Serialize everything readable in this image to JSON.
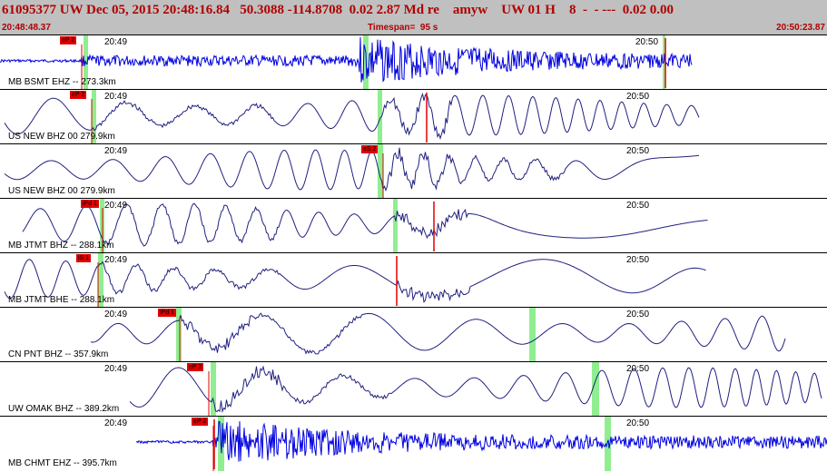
{
  "header": {
    "title": "61095377 UW Dec 05, 2015 20:48:16.84   50.3088 -114.8708  0.02 2.87 Md re    amyw    UW 01 H    8  -  - ---  0.02 0.00",
    "start_time": "20:48:48.37",
    "timespan": "Timespan=  95 s",
    "end_time": "20:50:23.87"
  },
  "colors": {
    "header_bg": "#c0c0c0",
    "header_text": "#b00000",
    "trace_dense": "#0000e0",
    "trace_wave": "#202080",
    "pick": "#e00000",
    "coda_window": "#90ee90"
  },
  "traces": [
    {
      "label": "MB BSMT EHZ -- 273.3km",
      "time1": "20:49",
      "time2": "20:50",
      "pick": "eP 2",
      "style": "dense"
    },
    {
      "label": "US NEW BHZ 00 279.9km",
      "time1": "20:49",
      "time2": "20:50",
      "pick": "eP 2",
      "style": "wave"
    },
    {
      "label": "US NEW BHZ 00 279.9km",
      "time1": "20:49",
      "time2": "20:50",
      "pick": "eS 2",
      "style": "wave"
    },
    {
      "label": "MB JTMT BHZ -- 288.1km",
      "time1": "20:49",
      "time2": "20:50",
      "pick": "iPd 1",
      "style": "wave"
    },
    {
      "label": "MB JTMT BHE -- 288.1km",
      "time1": "20:49",
      "time2": "20:50",
      "pick": "iS 1",
      "style": "wave"
    },
    {
      "label": "CN PNT BHZ -- 357.9km",
      "time1": "20:49",
      "time2": "20:50",
      "pick": "iPd 1",
      "style": "wave"
    },
    {
      "label": "UW OMAK BHZ -- 389.2km",
      "time1": "20:49",
      "time2": "20:50",
      "pick": "eP 2",
      "style": "wave"
    },
    {
      "label": "MB CHMT EHZ -- 395.7km",
      "time1": "20:49",
      "time2": "20:50",
      "pick": "eP 2",
      "style": "dense"
    }
  ]
}
